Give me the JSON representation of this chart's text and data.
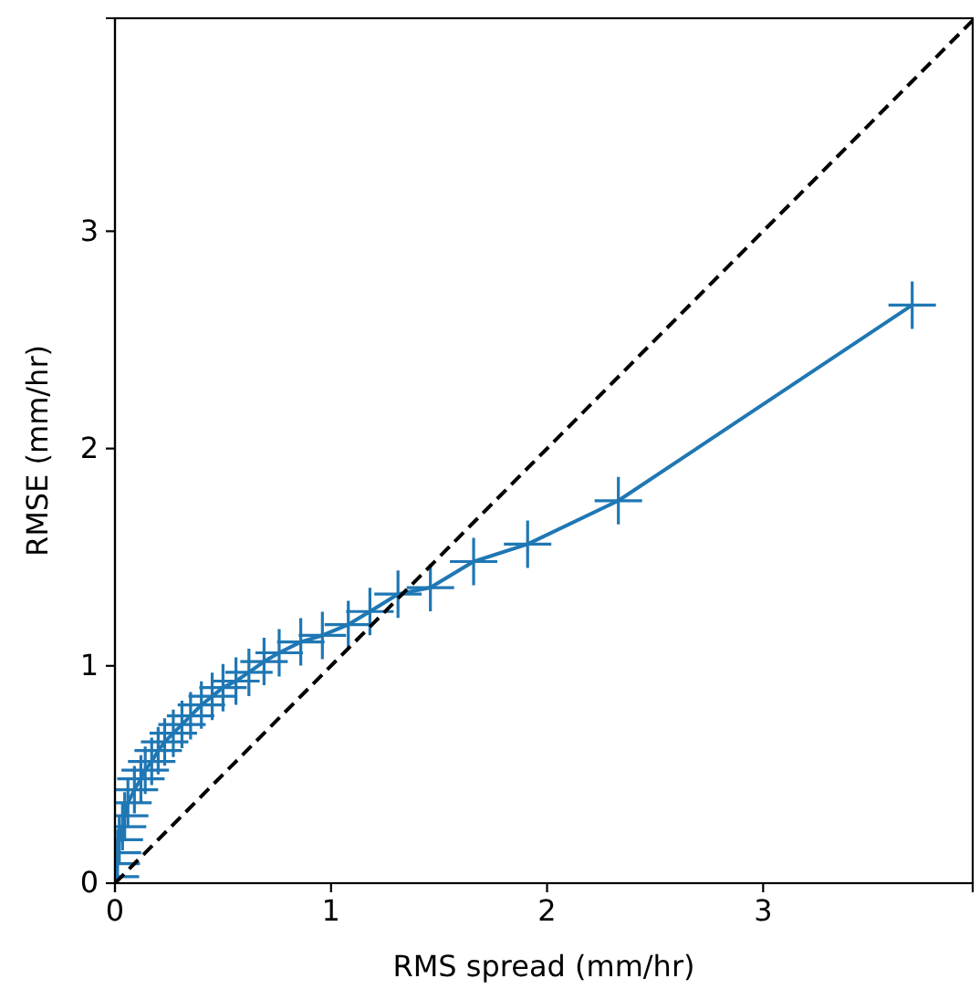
{
  "chart_data": {
    "type": "line",
    "xlabel": "RMS spread (mm/hr)",
    "ylabel": "RMSE (mm/hr)",
    "xlim": [
      0,
      3.97
    ],
    "ylim": [
      0,
      3.98
    ],
    "xticks": [
      0,
      1,
      2,
      3
    ],
    "yticks": [
      0,
      1,
      2,
      3
    ],
    "grid": false,
    "series": [
      {
        "color": "#1f77b4",
        "marker": "cross",
        "line_style": "solid",
        "x": [
          0.002,
          0.006,
          0.012,
          0.02,
          0.035,
          0.045,
          0.06,
          0.09,
          0.12,
          0.14,
          0.17,
          0.2,
          0.23,
          0.27,
          0.31,
          0.35,
          0.4,
          0.45,
          0.5,
          0.56,
          0.62,
          0.69,
          0.76,
          0.86,
          0.96,
          1.08,
          1.18,
          1.31,
          1.46,
          1.66,
          1.91,
          2.33,
          3.69
        ],
        "values": [
          0.03,
          0.09,
          0.14,
          0.2,
          0.26,
          0.31,
          0.37,
          0.43,
          0.48,
          0.52,
          0.56,
          0.61,
          0.65,
          0.69,
          0.73,
          0.77,
          0.82,
          0.86,
          0.9,
          0.93,
          0.97,
          1.02,
          1.06,
          1.11,
          1.14,
          1.19,
          1.25,
          1.33,
          1.36,
          1.48,
          1.56,
          1.76,
          2.66
        ]
      },
      {
        "color": "#000000",
        "marker": "none",
        "line_style": "dashed",
        "x": [
          0,
          3.97
        ],
        "values": [
          0,
          3.97
        ]
      }
    ]
  }
}
